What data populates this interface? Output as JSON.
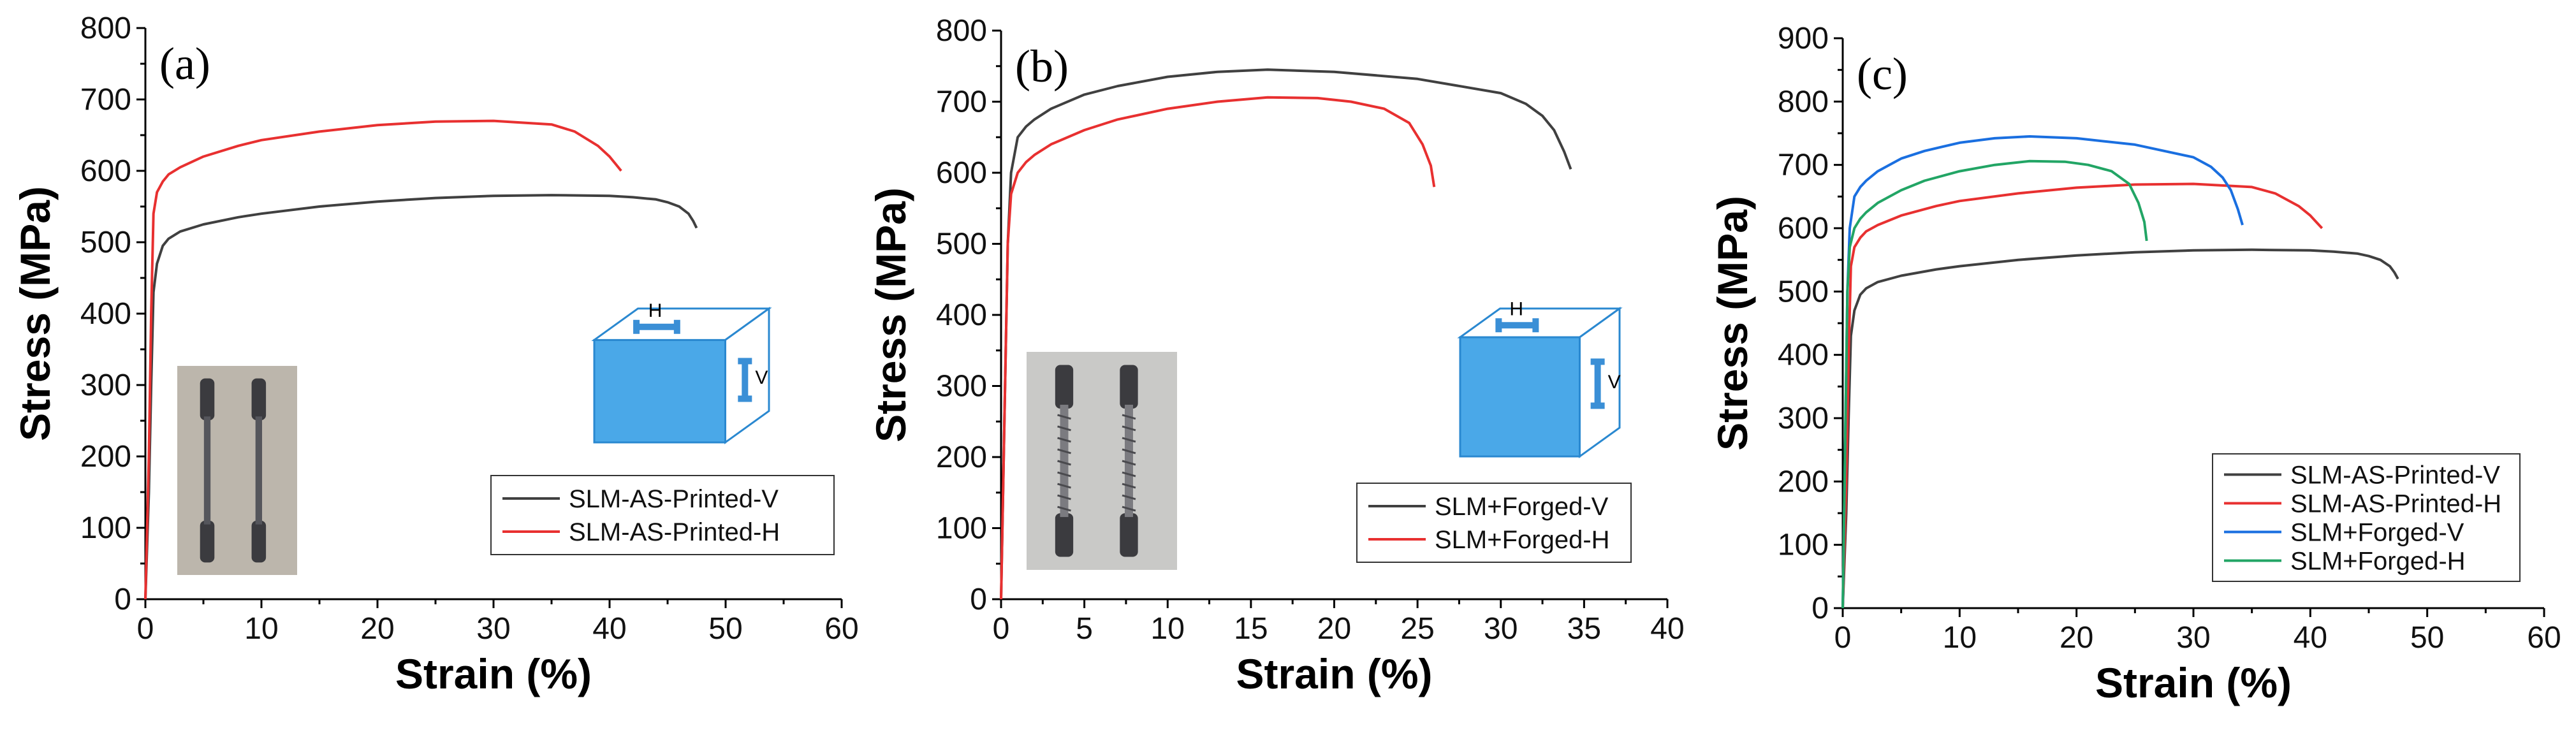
{
  "chart_data": [
    {
      "type": "line",
      "panel_label": "(a)",
      "xlabel": "Strain (%)",
      "ylabel": "Stress (MPa)",
      "xlim": [
        0,
        60
      ],
      "ylim": [
        0,
        800
      ],
      "xticks": [
        0,
        10,
        20,
        30,
        40,
        50,
        60
      ],
      "yticks": [
        0,
        100,
        200,
        300,
        400,
        500,
        600,
        700,
        800
      ],
      "legend_position": "lower-right",
      "inset_photo": "two tensile specimens",
      "inset_diagram": {
        "labels": [
          "H",
          "V"
        ]
      },
      "series": [
        {
          "name": "SLM-AS-Printed-V",
          "color": "#404040",
          "x": [
            0,
            0.3,
            0.5,
            0.7,
            1.0,
            1.5,
            2,
            3,
            5,
            8,
            10,
            15,
            20,
            25,
            30,
            35,
            40,
            42,
            44,
            45,
            46,
            46.8,
            47.2,
            47.5
          ],
          "y": [
            0,
            150,
            300,
            430,
            470,
            495,
            505,
            515,
            525,
            535,
            540,
            550,
            557,
            562,
            565,
            566,
            565,
            563,
            560,
            556,
            550,
            540,
            530,
            520
          ]
        },
        {
          "name": "SLM-AS-Printed-H",
          "color": "#e83030",
          "x": [
            0,
            0.3,
            0.5,
            0.7,
            1.0,
            1.5,
            2,
            3,
            5,
            8,
            10,
            15,
            20,
            25,
            30,
            35,
            37,
            39,
            40,
            40.5,
            41
          ],
          "y": [
            0,
            200,
            400,
            540,
            570,
            585,
            595,
            605,
            620,
            635,
            643,
            655,
            664,
            669,
            670,
            665,
            655,
            635,
            620,
            610,
            600
          ]
        }
      ]
    },
    {
      "type": "line",
      "panel_label": "(b)",
      "xlabel": "Strain (%)",
      "ylabel": "Stress (MPa)",
      "xlim": [
        0,
        40
      ],
      "ylim": [
        0,
        800
      ],
      "xticks": [
        0,
        5,
        10,
        15,
        20,
        25,
        30,
        35,
        40
      ],
      "yticks": [
        0,
        100,
        200,
        300,
        400,
        500,
        600,
        700,
        800
      ],
      "legend_position": "lower-right",
      "inset_photo": "two forged tensile specimens",
      "inset_diagram": {
        "labels": [
          "H",
          "V"
        ]
      },
      "series": [
        {
          "name": "SLM+Forged-V",
          "color": "#404040",
          "x": [
            0,
            0.2,
            0.4,
            0.6,
            1.0,
            1.5,
            2,
            3,
            5,
            7,
            10,
            13,
            16,
            20,
            25,
            30,
            31.5,
            32.5,
            33.2,
            33.8,
            34.2
          ],
          "y": [
            0,
            250,
            500,
            600,
            650,
            665,
            675,
            690,
            710,
            722,
            735,
            742,
            745,
            742,
            732,
            712,
            697,
            680,
            660,
            630,
            605
          ]
        },
        {
          "name": "SLM+Forged-H",
          "color": "#e83030",
          "x": [
            0,
            0.2,
            0.4,
            0.6,
            1.0,
            1.5,
            2,
            3,
            5,
            7,
            10,
            13,
            16,
            19,
            21,
            23,
            24.5,
            25.3,
            25.8,
            26.0
          ],
          "y": [
            0,
            250,
            500,
            570,
            600,
            615,
            625,
            640,
            660,
            675,
            690,
            700,
            706,
            705,
            700,
            690,
            670,
            640,
            610,
            580
          ]
        }
      ]
    },
    {
      "type": "line",
      "panel_label": "(c)",
      "xlabel": "Strain (%)",
      "ylabel": "Stress (MPa)",
      "xlim": [
        0,
        60
      ],
      "ylim": [
        0,
        900
      ],
      "xticks": [
        0,
        10,
        20,
        30,
        40,
        50,
        60
      ],
      "yticks": [
        0,
        100,
        200,
        300,
        400,
        500,
        600,
        700,
        800,
        900
      ],
      "legend_position": "lower-right",
      "series": [
        {
          "name": "SLM-AS-Printed-V",
          "color": "#404040",
          "x": [
            0,
            0.3,
            0.5,
            0.7,
            1.0,
            1.5,
            2,
            3,
            5,
            8,
            10,
            15,
            20,
            25,
            30,
            35,
            40,
            42,
            44,
            45,
            46,
            46.8,
            47.2,
            47.5
          ],
          "y": [
            0,
            150,
            300,
            430,
            470,
            495,
            505,
            515,
            525,
            535,
            540,
            550,
            557,
            562,
            565,
            566,
            565,
            563,
            560,
            556,
            550,
            540,
            530,
            520
          ]
        },
        {
          "name": "SLM-AS-Printed-H",
          "color": "#e83030",
          "x": [
            0,
            0.3,
            0.5,
            0.7,
            1.0,
            1.5,
            2,
            3,
            5,
            8,
            10,
            15,
            20,
            25,
            30,
            35,
            37,
            39,
            40,
            40.5,
            41
          ],
          "y": [
            0,
            200,
            400,
            540,
            570,
            585,
            595,
            605,
            620,
            635,
            643,
            655,
            664,
            669,
            670,
            665,
            655,
            635,
            620,
            610,
            600
          ]
        },
        {
          "name": "SLM+Forged-V",
          "color": "#1a6fe0",
          "x": [
            0,
            0.2,
            0.4,
            0.6,
            1.0,
            1.5,
            2,
            3,
            5,
            7,
            10,
            13,
            16,
            20,
            25,
            30,
            31.5,
            32.5,
            33.2,
            33.8,
            34.2
          ],
          "y": [
            0,
            250,
            500,
            600,
            650,
            665,
            675,
            690,
            710,
            722,
            735,
            742,
            745,
            742,
            732,
            712,
            697,
            680,
            660,
            630,
            605
          ]
        },
        {
          "name": "SLM+Forged-H",
          "color": "#22a565",
          "x": [
            0,
            0.2,
            0.4,
            0.6,
            1.0,
            1.5,
            2,
            3,
            5,
            7,
            10,
            13,
            16,
            19,
            21,
            23,
            24.5,
            25.3,
            25.8,
            26.0
          ],
          "y": [
            0,
            250,
            500,
            570,
            600,
            615,
            625,
            640,
            660,
            675,
            690,
            700,
            706,
            705,
            700,
            690,
            670,
            640,
            610,
            580
          ]
        }
      ]
    }
  ]
}
